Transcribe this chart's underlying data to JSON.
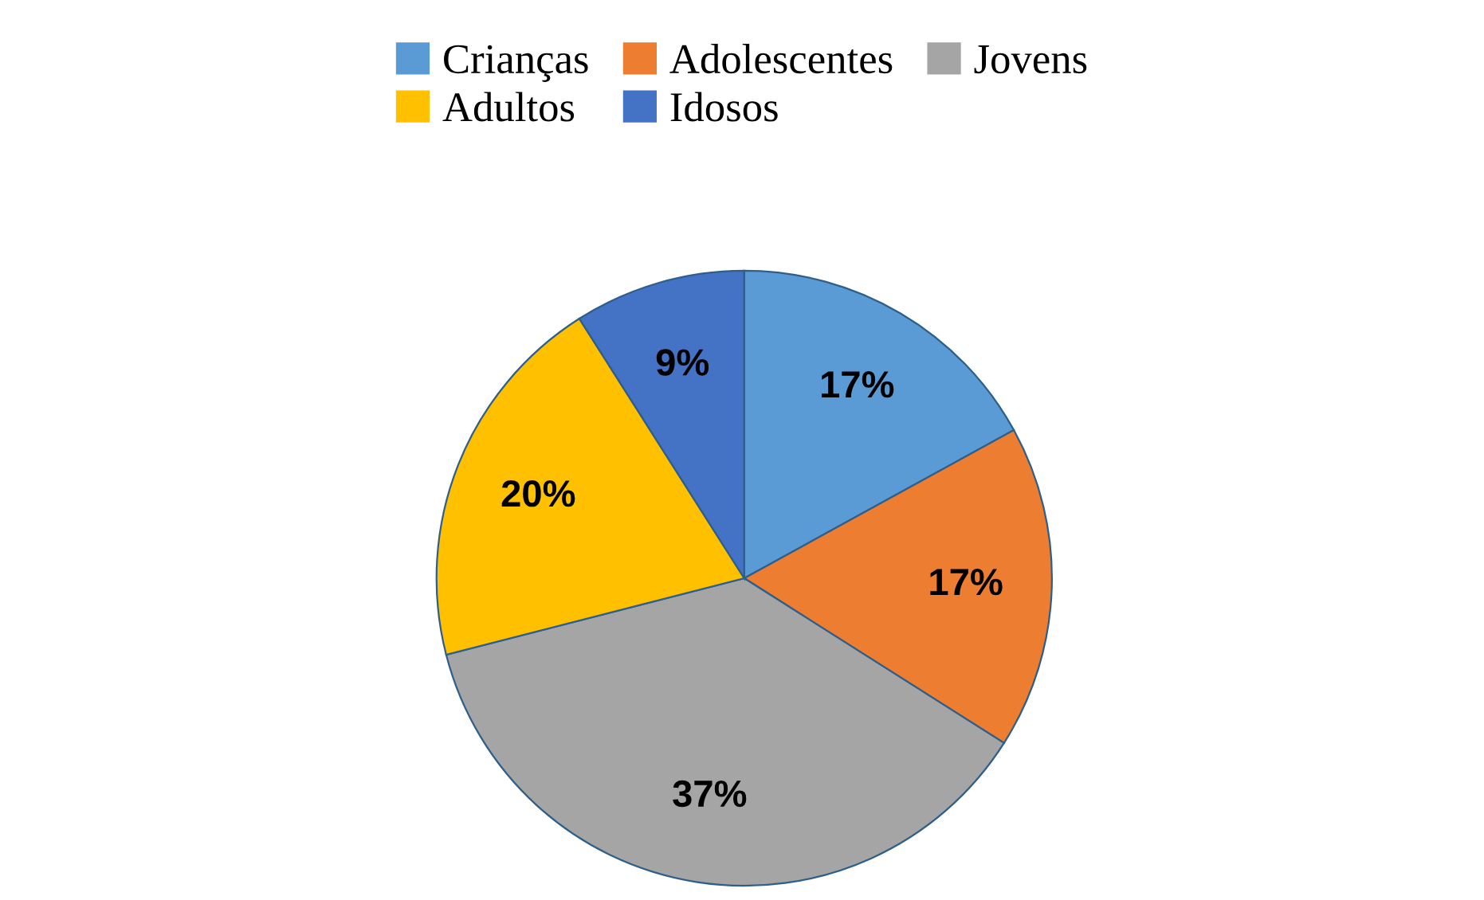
{
  "chart_data": {
    "type": "pie",
    "categories": [
      "Crianças",
      "Adolescentes",
      "Jovens",
      "Adultos",
      "Idosos"
    ],
    "values": [
      17,
      17,
      37,
      20,
      9
    ],
    "colors": [
      "#5b9bd5",
      "#ed7d31",
      "#a5a5a5",
      "#ffc000",
      "#4472c4"
    ],
    "value_labels": [
      "17%",
      "17%",
      "37%",
      "20%",
      "9%"
    ],
    "legend": "top"
  }
}
